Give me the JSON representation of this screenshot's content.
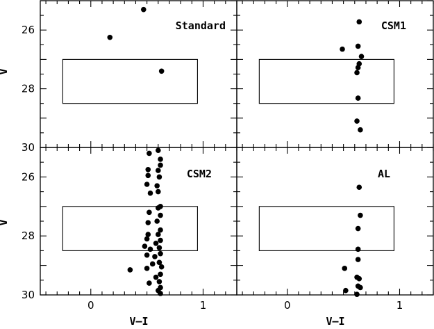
{
  "chart_data": {
    "type": "scatter",
    "xlim": [
      -0.45,
      1.3
    ],
    "ylim": [
      30,
      25
    ],
    "x_ticks": [
      0,
      1
    ],
    "x_tick_labels": [
      "0",
      "1"
    ],
    "y_ticks": [
      26,
      28,
      30
    ],
    "y_tick_labels": [
      "26",
      "28",
      "30"
    ],
    "xlabel": "V–I",
    "ylabel": "V",
    "selection_box": {
      "x": [
        -0.25,
        0.95
      ],
      "y": [
        27.0,
        28.5
      ]
    },
    "panels": [
      {
        "label": "Standard",
        "points": [
          [
            0.47,
            25.3
          ],
          [
            0.17,
            26.25
          ],
          [
            0.63,
            27.4
          ]
        ]
      },
      {
        "label": "CSM1",
        "points": [
          [
            0.64,
            25.72
          ],
          [
            0.49,
            26.65
          ],
          [
            0.63,
            26.55
          ],
          [
            0.66,
            26.9
          ],
          [
            0.64,
            27.15
          ],
          [
            0.63,
            27.28
          ],
          [
            0.62,
            27.45
          ],
          [
            0.63,
            28.32
          ],
          [
            0.62,
            29.1
          ],
          [
            0.65,
            29.4
          ]
        ]
      },
      {
        "label": "CSM2",
        "points": [
          [
            0.52,
            25.2
          ],
          [
            0.6,
            25.1
          ],
          [
            0.62,
            25.4
          ],
          [
            0.62,
            25.6
          ],
          [
            0.51,
            25.75
          ],
          [
            0.6,
            25.78
          ],
          [
            0.51,
            25.95
          ],
          [
            0.61,
            26.0
          ],
          [
            0.5,
            26.25
          ],
          [
            0.59,
            26.3
          ],
          [
            0.53,
            26.55
          ],
          [
            0.6,
            26.5
          ],
          [
            0.62,
            27.0
          ],
          [
            0.6,
            27.05
          ],
          [
            0.52,
            27.2
          ],
          [
            0.62,
            27.3
          ],
          [
            0.51,
            27.55
          ],
          [
            0.59,
            27.5
          ],
          [
            0.62,
            27.8
          ],
          [
            0.51,
            27.95
          ],
          [
            0.6,
            27.95
          ],
          [
            0.62,
            28.15
          ],
          [
            0.5,
            28.1
          ],
          [
            0.58,
            28.25
          ],
          [
            0.48,
            28.35
          ],
          [
            0.53,
            28.45
          ],
          [
            0.61,
            28.4
          ],
          [
            0.62,
            28.6
          ],
          [
            0.5,
            28.65
          ],
          [
            0.57,
            28.7
          ],
          [
            0.61,
            28.9
          ],
          [
            0.55,
            28.95
          ],
          [
            0.63,
            29.05
          ],
          [
            0.5,
            29.1
          ],
          [
            0.35,
            29.15
          ],
          [
            0.62,
            29.3
          ],
          [
            0.58,
            29.4
          ],
          [
            0.61,
            29.55
          ],
          [
            0.52,
            29.6
          ],
          [
            0.62,
            29.75
          ],
          [
            0.6,
            29.85
          ],
          [
            0.62,
            29.95
          ]
        ]
      },
      {
        "label": "AL",
        "points": [
          [
            0.64,
            26.35
          ],
          [
            0.65,
            27.3
          ],
          [
            0.63,
            27.75
          ],
          [
            0.63,
            28.45
          ],
          [
            0.63,
            28.8
          ],
          [
            0.51,
            29.1
          ],
          [
            0.62,
            29.4
          ],
          [
            0.64,
            29.45
          ],
          [
            0.63,
            29.7
          ],
          [
            0.65,
            29.75
          ],
          [
            0.52,
            29.85
          ],
          [
            0.62,
            29.98
          ]
        ]
      }
    ]
  }
}
